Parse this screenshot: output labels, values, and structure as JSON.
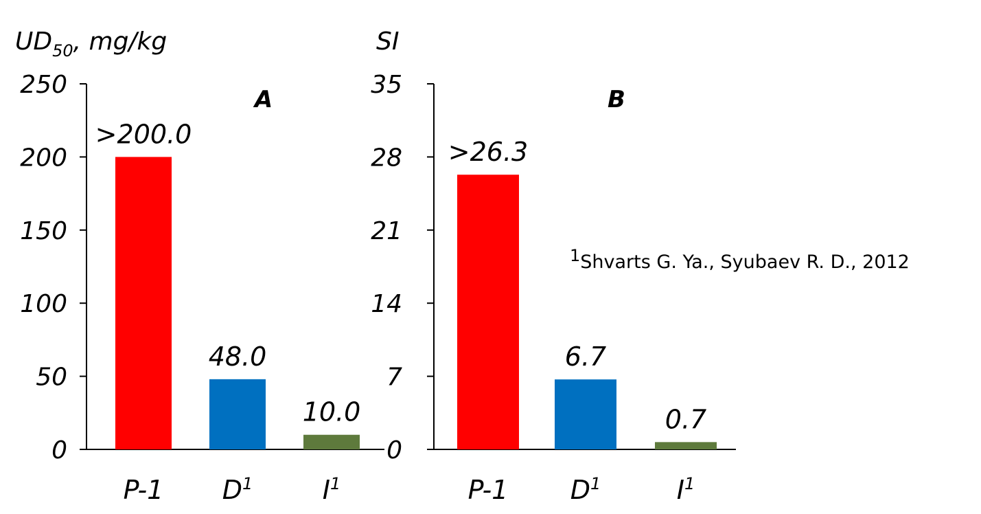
{
  "chart_data": [
    {
      "type": "bar",
      "panel_label": "A",
      "ylabel": "UD",
      "ylabel_sub": "50",
      "ylabel_suffix": ", mg/kg",
      "ylim": [
        0,
        250
      ],
      "yticks": [
        0,
        50,
        100,
        150,
        200,
        250
      ],
      "categories": [
        "P-1",
        "D",
        "I"
      ],
      "category_superscripts": [
        "",
        "1",
        "1"
      ],
      "values": [
        200.0,
        48.0,
        10.0
      ],
      "data_labels": [
        ">200.0",
        "48.0",
        "10.0"
      ],
      "colors": [
        "#ff0000",
        "#0070c0",
        "#5e7a3c"
      ]
    },
    {
      "type": "bar",
      "panel_label": "B",
      "ylabel": "SI",
      "ylim": [
        0,
        35
      ],
      "yticks": [
        0,
        7,
        14,
        21,
        28,
        35
      ],
      "categories": [
        "P-1",
        "D",
        "I"
      ],
      "category_superscripts": [
        "",
        "1",
        "1"
      ],
      "values": [
        26.3,
        6.7,
        0.7
      ],
      "data_labels": [
        ">26.3",
        "6.7",
        "0.7"
      ],
      "colors": [
        "#ff0000",
        "#0070c0",
        "#5e7a3c"
      ]
    }
  ],
  "footnote": {
    "marker": "1",
    "text": "Shvarts G. Ya., Syubaev R. D., 2012"
  }
}
